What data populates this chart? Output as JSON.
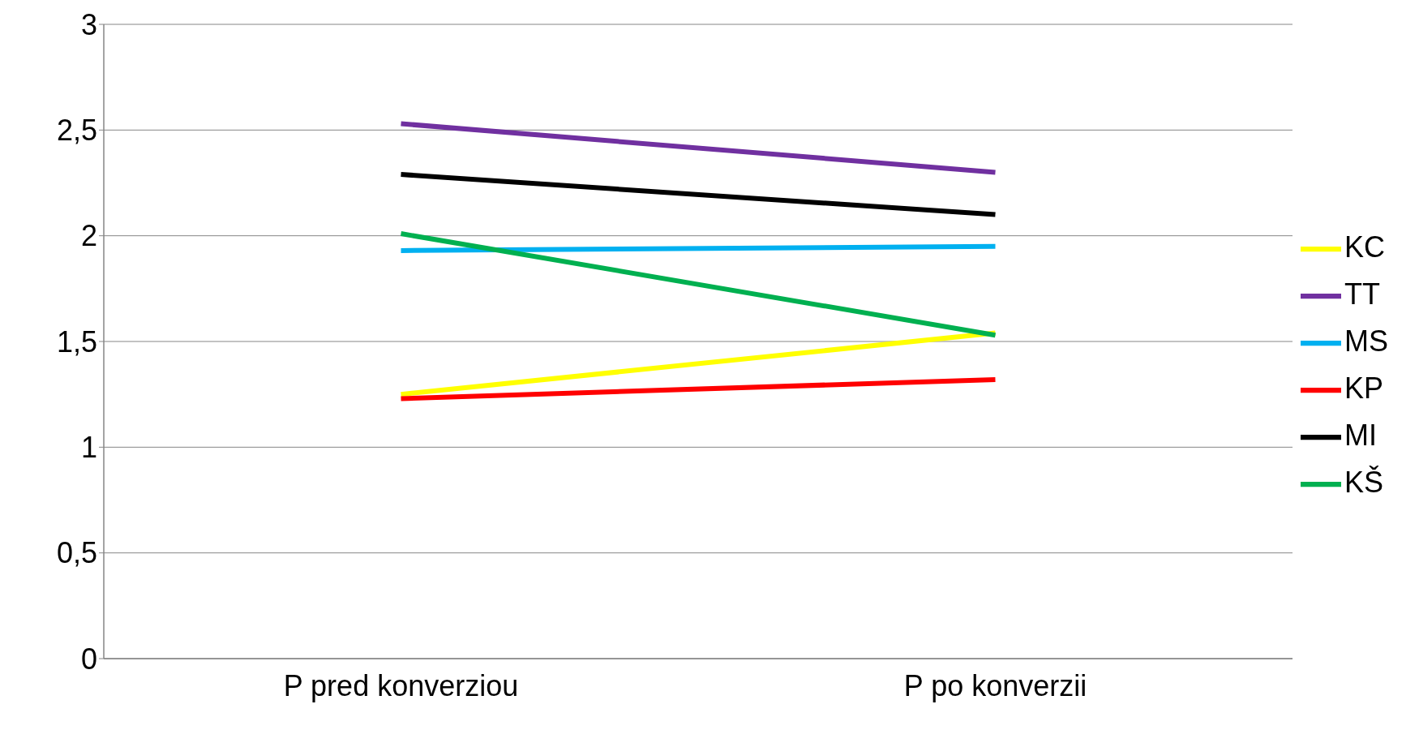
{
  "chart_data": {
    "type": "line",
    "categories": [
      "P pred konverziou",
      "P po konverzii"
    ],
    "series": [
      {
        "name": "KC",
        "color": "#ffff00",
        "values": [
          1.25,
          1.54
        ]
      },
      {
        "name": "TT",
        "color": "#7030a0",
        "values": [
          2.53,
          2.3
        ]
      },
      {
        "name": "MS",
        "color": "#00b0f0",
        "values": [
          1.93,
          1.95
        ]
      },
      {
        "name": "KP",
        "color": "#ff0000",
        "values": [
          1.23,
          1.32
        ]
      },
      {
        "name": "MI",
        "color": "#000000",
        "values": [
          2.29,
          2.1
        ]
      },
      {
        "name": "KŠ",
        "color": "#00b050",
        "values": [
          2.01,
          1.53
        ]
      }
    ],
    "ylim": [
      0,
      3
    ],
    "yticks": [
      0,
      {
        "value": 0.5,
        "label": "0,5"
      },
      1,
      {
        "value": 1.5,
        "label": "1,5"
      },
      2,
      {
        "value": 2.5,
        "label": "2,5"
      },
      3
    ],
    "grid": "y",
    "legend": "right",
    "marker": "none",
    "line_style": "solid"
  }
}
